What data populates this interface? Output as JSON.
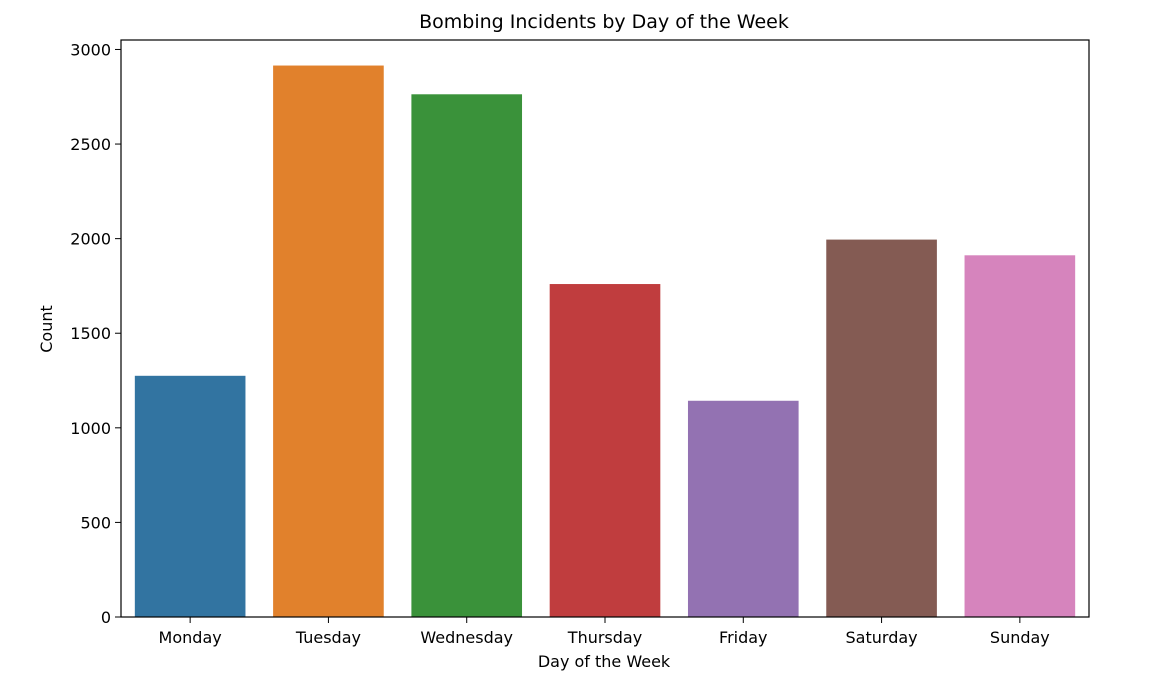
{
  "chart_data": {
    "type": "bar",
    "title": "Bombing Incidents by Day of the Week",
    "xlabel": "Day of the Week",
    "ylabel": "Count",
    "categories": [
      "Monday",
      "Tuesday",
      "Wednesday",
      "Thursday",
      "Friday",
      "Saturday",
      "Sunday"
    ],
    "values": [
      1275,
      2915,
      2763,
      1760,
      1143,
      1995,
      1912
    ],
    "colors": [
      "#3274a1",
      "#e1812c",
      "#3a923a",
      "#c03d3e",
      "#9372b2",
      "#845b53",
      "#d684bd"
    ],
    "ylim": [
      0,
      3050
    ],
    "yticks": [
      0,
      500,
      1000,
      1500,
      2000,
      2500,
      3000
    ],
    "ytick_labels": [
      "0",
      "500",
      "1000",
      "1500",
      "2000",
      "2500",
      "3000"
    ],
    "grid": false,
    "legend": false
  }
}
